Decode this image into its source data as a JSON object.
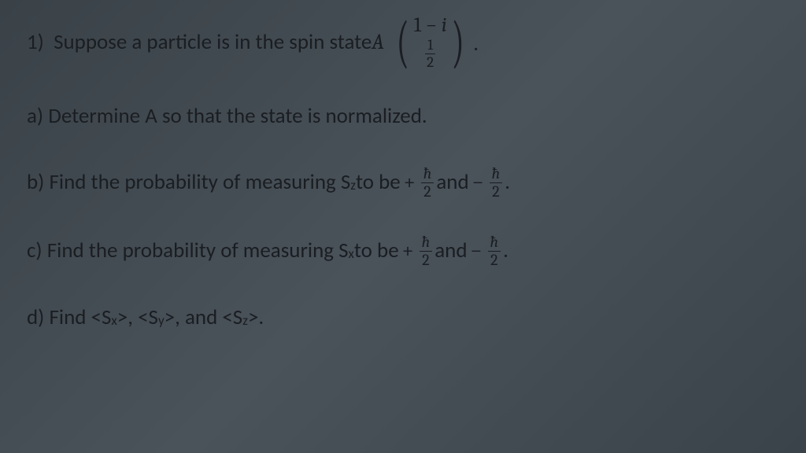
{
  "background_color": "#424a52",
  "text_color": "#1a1e22",
  "font_family": "Calibri",
  "math_font": "Cambria",
  "problem": {
    "number": "1)",
    "intro_pre": "Suppose a particle is in the spin state ",
    "intro_A": "A",
    "matrix_top": "1 − i",
    "matrix_frac_num": "1",
    "matrix_frac_den": "2",
    "period": "."
  },
  "parts": {
    "a": {
      "label": "a)",
      "text": "Determine A so that the state is normalized."
    },
    "b": {
      "label": "b)",
      "pre": "Find the probability of measuring S",
      "sub": "z",
      "mid": " to be ",
      "plus": "+",
      "frac_num": "ħ",
      "frac_den": "2",
      "and": " and ",
      "minus": "−",
      "period": "."
    },
    "c": {
      "label": "c)",
      "pre": "Find the probability of measuring S",
      "sub": "x",
      "mid": " to be ",
      "plus": "+",
      "frac_num": "ħ",
      "frac_den": "2",
      "and": " and ",
      "minus": "−",
      "period": "."
    },
    "d": {
      "label": "d)",
      "pre": "Find <S",
      "sub1": "x",
      "mid1": ">, <S",
      "sub2": "y",
      "mid2": ">, and <S",
      "sub3": "z",
      "post": ">."
    }
  }
}
